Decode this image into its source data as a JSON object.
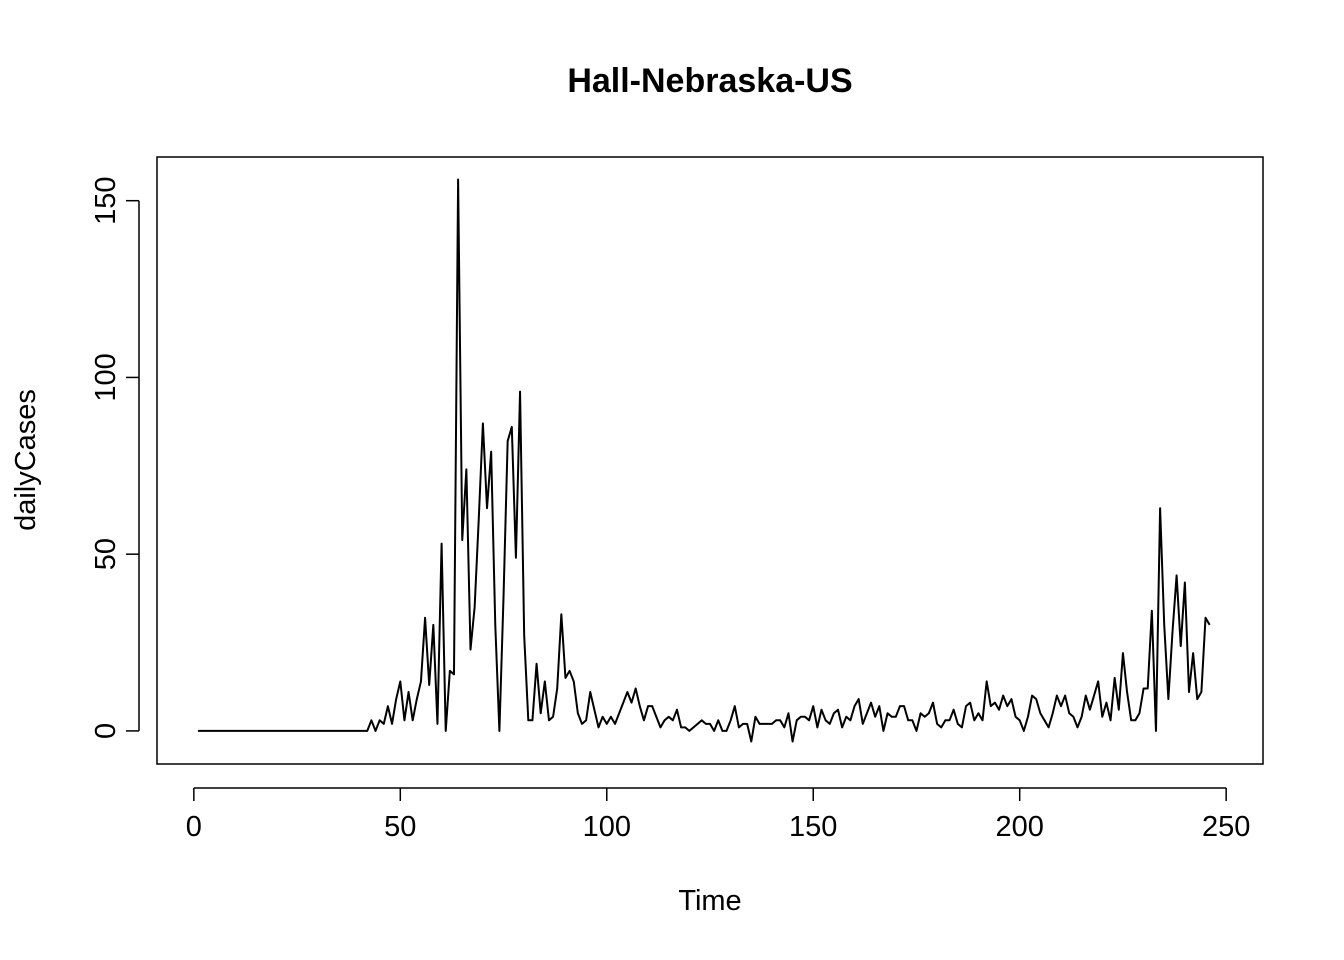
{
  "chart_data": {
    "type": "line",
    "title": "Hall-Nebraska-US",
    "xlabel": "Time",
    "ylabel": "dailyCases",
    "xlim": [
      1,
      249
    ],
    "ylim": [
      -3,
      156
    ],
    "x_ticks": [
      0,
      50,
      100,
      150,
      200,
      250
    ],
    "y_ticks": [
      0,
      50,
      100,
      150
    ],
    "grid": false,
    "legend": "none",
    "line_color": "#000000",
    "series": [
      {
        "x_start": 1,
        "values": [
          0,
          0,
          0,
          0,
          0,
          0,
          0,
          0,
          0,
          0,
          0,
          0,
          0,
          0,
          0,
          0,
          0,
          0,
          0,
          0,
          0,
          0,
          0,
          0,
          0,
          0,
          0,
          0,
          0,
          0,
          0,
          0,
          0,
          0,
          0,
          0,
          0,
          0,
          0,
          0,
          0,
          0,
          3,
          0,
          3,
          2,
          7,
          2,
          9,
          14,
          3,
          11,
          3,
          9,
          14,
          32,
          13,
          30,
          2,
          53,
          0,
          17,
          16,
          156,
          54,
          74,
          23,
          35,
          60,
          87,
          63,
          79,
          30,
          0,
          38,
          82,
          86,
          49,
          96,
          27,
          3,
          3,
          19,
          5,
          14,
          3,
          4,
          12,
          33,
          15,
          17,
          14,
          5,
          2,
          3,
          11,
          6,
          1,
          4,
          2,
          4,
          2,
          5,
          8,
          11,
          8,
          12,
          7,
          3,
          7,
          7,
          4,
          1,
          3,
          4,
          3,
          6,
          1,
          1,
          0,
          1,
          2,
          3,
          2,
          2,
          0,
          3,
          0,
          0,
          3,
          7,
          1,
          2,
          2,
          -3,
          4,
          2,
          2,
          2,
          2,
          3,
          3,
          1,
          5,
          -3,
          3,
          4,
          4,
          3,
          7,
          1,
          6,
          3,
          2,
          5,
          6,
          1,
          4,
          3,
          7,
          9,
          2,
          5,
          8,
          4,
          7,
          0,
          5,
          4,
          4,
          7,
          7,
          3,
          3,
          0,
          5,
          4,
          5,
          8,
          2,
          1,
          3,
          3,
          6,
          2,
          1,
          7,
          8,
          3,
          5,
          3,
          14,
          7,
          8,
          6,
          10,
          7,
          9,
          4,
          3,
          0,
          4,
          10,
          9,
          5,
          3,
          1,
          5,
          10,
          7,
          10,
          5,
          4,
          1,
          4,
          10,
          6,
          10,
          14,
          4,
          8,
          3,
          15,
          6,
          22,
          11,
          3,
          3,
          5,
          12,
          12,
          34,
          0,
          63,
          30,
          9,
          28,
          44,
          24,
          42,
          11,
          22,
          9,
          11,
          32,
          30
        ]
      }
    ]
  }
}
